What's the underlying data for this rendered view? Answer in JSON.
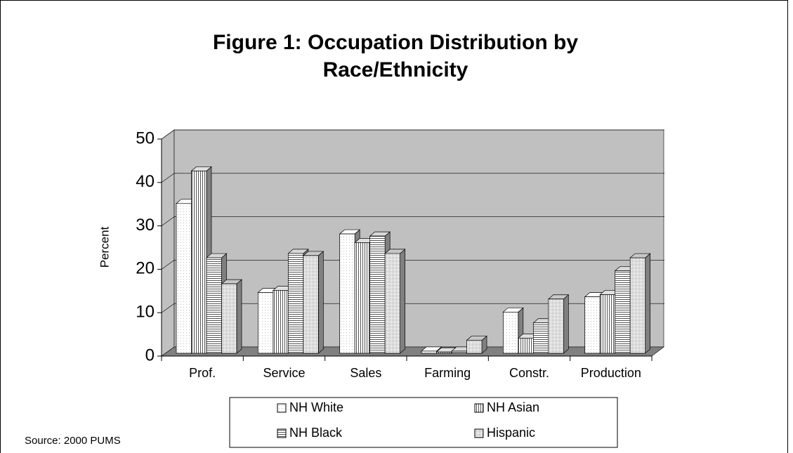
{
  "chart_data": {
    "type": "bar3d",
    "title": [
      "Figure 1: Occupation Distribution by",
      "Race/Ethnicity"
    ],
    "y_label": "Percent",
    "source": "Source: 2000 PUMS",
    "categories": [
      "Prof.",
      "Service",
      "Sales",
      "Farming",
      "Constr.",
      "Production"
    ],
    "series": [
      {
        "name": "NH White",
        "color": "#ffffff",
        "values": [
          34.5,
          14,
          27.5,
          0.5,
          9.5,
          13
        ]
      },
      {
        "name": "NH Asian",
        "color": "#e0e0e0",
        "values": [
          42,
          14.5,
          25.5,
          0.3,
          3.5,
          13.5
        ]
      },
      {
        "name": "NH Black",
        "color": "#d8d8d8",
        "values": [
          22,
          23,
          27,
          0.5,
          7,
          19
        ]
      },
      {
        "name": "Hispanic",
        "color": "#c8c8c8",
        "values": [
          16,
          22.5,
          23,
          3,
          12.5,
          22
        ]
      }
    ],
    "ylim": [
      0,
      50
    ],
    "yticks": [
      0,
      10,
      20,
      30,
      40,
      50
    ],
    "grid": true
  }
}
